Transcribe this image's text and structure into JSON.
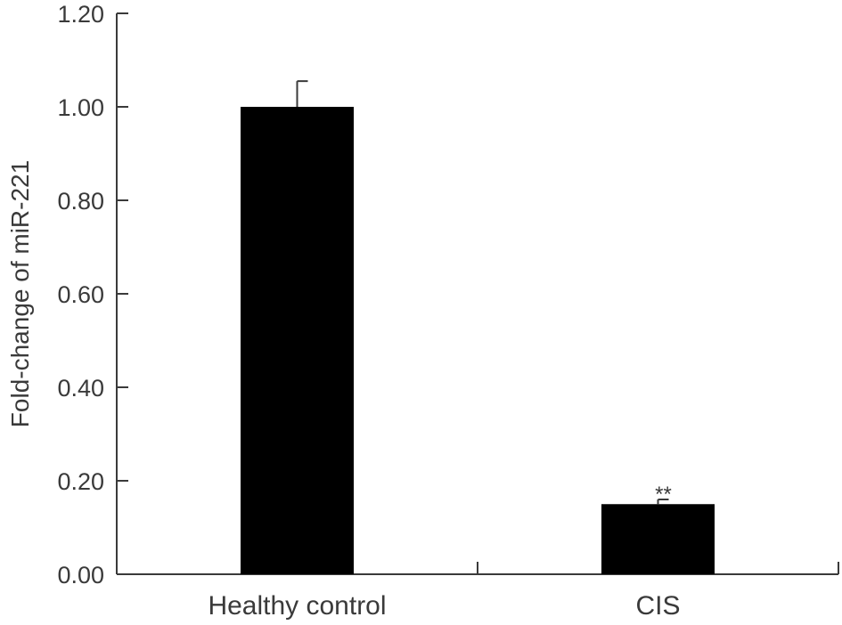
{
  "chart_data": {
    "type": "bar",
    "title": "",
    "xlabel": "",
    "ylabel": "Fold-change of miR-221",
    "categories": [
      "Healthy control",
      "CIS"
    ],
    "values": [
      1.0,
      0.15
    ],
    "error": [
      0.055,
      0.01
    ],
    "ylim": [
      0,
      1.2
    ],
    "yticks": [
      "0.00",
      "0.20",
      "0.40",
      "0.60",
      "0.80",
      "1.00",
      "1.20"
    ],
    "annotations": [
      {
        "category": "CIS",
        "text": "**"
      }
    ],
    "grid": false,
    "bar_color": "#000000",
    "axis_color": "#3a3a3a"
  }
}
